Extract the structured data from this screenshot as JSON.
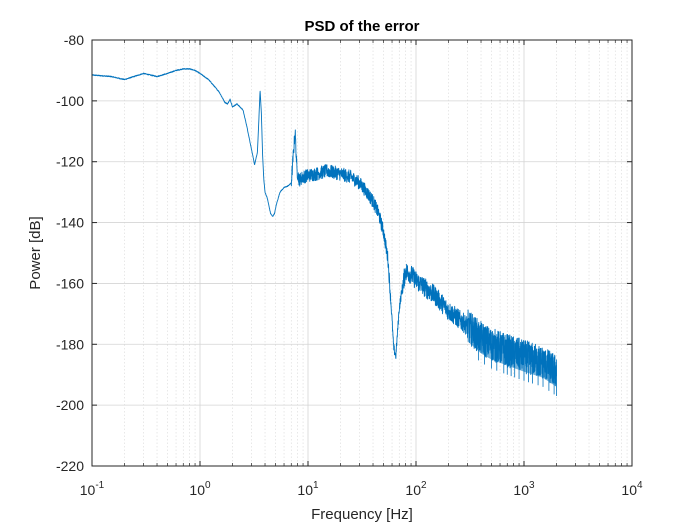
{
  "chart_data": {
    "type": "line",
    "title": "PSD of the error",
    "xlabel": "Frequency [Hz]",
    "ylabel": "Power [dB]",
    "x_scale": "log",
    "y_scale": "linear",
    "xlim": [
      0.1,
      10000
    ],
    "ylim": [
      -220,
      -80
    ],
    "grid": "on (major and minor)",
    "x_ticks": [
      {
        "value": 0.1,
        "base": "10",
        "exp": "-1"
      },
      {
        "value": 1,
        "base": "10",
        "exp": "0"
      },
      {
        "value": 10,
        "base": "10",
        "exp": "1"
      },
      {
        "value": 100,
        "base": "10",
        "exp": "2"
      },
      {
        "value": 1000,
        "base": "10",
        "exp": "3"
      },
      {
        "value": 10000,
        "base": "10",
        "exp": "4"
      }
    ],
    "y_ticks": [
      {
        "value": -80,
        "label": "-80"
      },
      {
        "value": -100,
        "label": "-100"
      },
      {
        "value": -120,
        "label": "-120"
      },
      {
        "value": -140,
        "label": "-140"
      },
      {
        "value": -160,
        "label": "-160"
      },
      {
        "value": -180,
        "label": "-180"
      },
      {
        "value": -200,
        "label": "-200"
      },
      {
        "value": -220,
        "label": "-220"
      }
    ],
    "line_color": "#0072BD",
    "series": [
      {
        "x": [
          0.1,
          0.15,
          0.2,
          0.3,
          0.4,
          0.5,
          0.6,
          0.7,
          0.8,
          0.9,
          1.0,
          1.2,
          1.5,
          1.7,
          1.8,
          1.9,
          2.0,
          2.2,
          2.5,
          2.7,
          3.0,
          3.2,
          3.4,
          3.5,
          3.6,
          3.7,
          3.8,
          3.9,
          4.0,
          4.2,
          4.5,
          4.7,
          4.9,
          5.1,
          5.5,
          6,
          6.5,
          7,
          7.3,
          7.6,
          7.9,
          8.3,
          9,
          10,
          12,
          15,
          20,
          25,
          30,
          35,
          40,
          45,
          50,
          55,
          58,
          60,
          62,
          65,
          70,
          75,
          80,
          90,
          100,
          150,
          200,
          300,
          400,
          500,
          700,
          1000,
          1500,
          2000
        ],
        "y": [
          -91.5,
          -92,
          -93,
          -91,
          -92,
          -91,
          -90,
          -89.5,
          -89.5,
          -90,
          -91,
          -93,
          -97,
          -100.5,
          -101,
          -99.5,
          -102,
          -101,
          -103,
          -108,
          -116,
          -121,
          -117,
          -107,
          -96.5,
          -104,
          -118,
          -126,
          -130,
          -132,
          -137,
          -138,
          -137,
          -134,
          -130,
          -128.5,
          -128,
          -127,
          -118,
          -110,
          -123,
          -126,
          -125,
          -124.5,
          -124,
          -123,
          -124,
          -125,
          -127,
          -130,
          -133,
          -137,
          -143,
          -152,
          -164,
          -172,
          -181,
          -184,
          -168,
          -161,
          -156,
          -157,
          -159,
          -164,
          -169,
          -174,
          -178,
          -180,
          -182,
          -184,
          -186,
          -189
        ]
      }
    ]
  }
}
